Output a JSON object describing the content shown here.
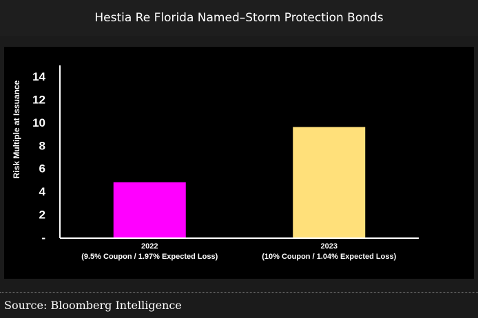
{
  "title": "Hestia Re Florida Named–Storm Protection Bonds",
  "source": "Source: Bloomberg Intelligence",
  "chart_data": {
    "type": "bar",
    "title": "Hestia Re Florida Named–Storm Protection Bonds",
    "categories": [
      "2022",
      "2023"
    ],
    "category_sublabels": [
      "(9.5% Coupon / 1.97% Expected Loss)",
      "(10% Coupon / 1.04% Expected Loss)"
    ],
    "values": [
      4.8,
      9.6
    ],
    "colors": [
      "#ff00ff",
      "#ffe07a"
    ],
    "xlabel": "",
    "ylabel": "Risk Multiple at Issuance",
    "ylim": [
      0,
      14
    ],
    "yticks": [
      0,
      2,
      4,
      6,
      8,
      10,
      12,
      14
    ],
    "ytick_labels": [
      "-",
      "2",
      "4",
      "6",
      "8",
      "10",
      "12",
      "14"
    ],
    "grid": false
  }
}
